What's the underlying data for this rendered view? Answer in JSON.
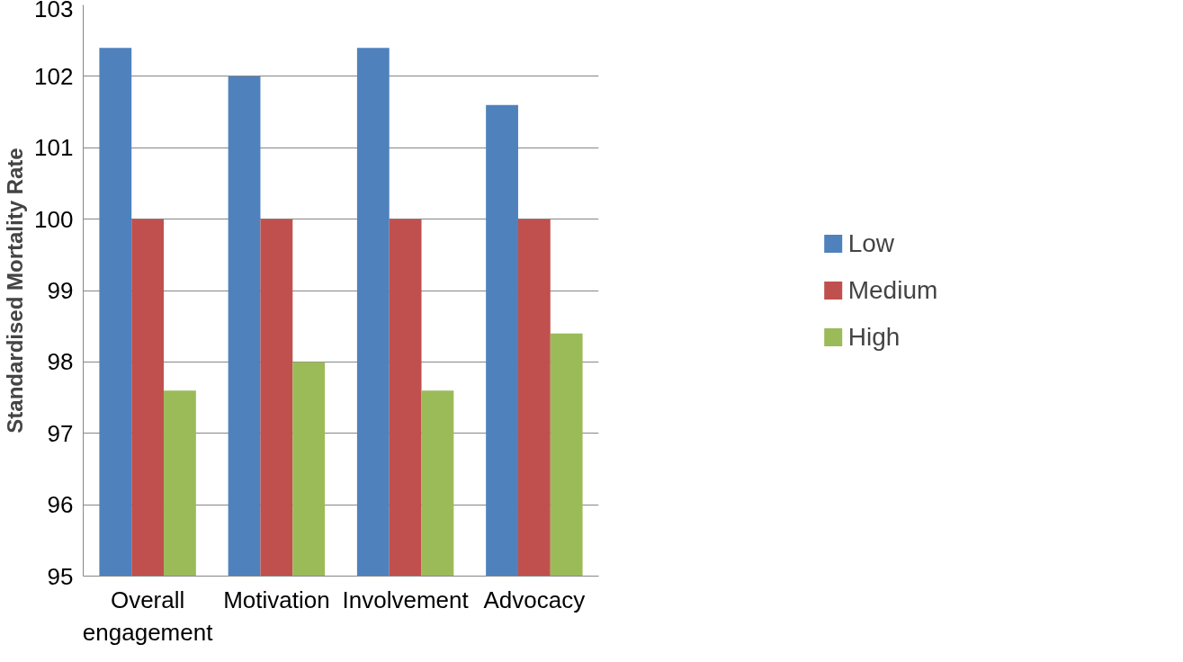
{
  "chart_data": {
    "type": "bar",
    "ylabel": "Standardised Mortality Rate",
    "categories": [
      "Overall engagement",
      "Motivation",
      "Involvement",
      "Advocacy"
    ],
    "series": [
      {
        "name": "Low",
        "color": "#4f81bd",
        "values": [
          102.4,
          102.0,
          102.4,
          101.6
        ]
      },
      {
        "name": "Medium",
        "color": "#c0504d",
        "values": [
          100,
          100,
          100,
          100
        ]
      },
      {
        "name": "High",
        "color": "#9bbb59",
        "values": [
          97.6,
          98.0,
          97.6,
          98.4
        ]
      }
    ],
    "ylim": [
      95,
      103
    ],
    "yticks": [
      95,
      96,
      97,
      98,
      99,
      100,
      101,
      102,
      103
    ],
    "grid": "y",
    "legend": "right"
  }
}
